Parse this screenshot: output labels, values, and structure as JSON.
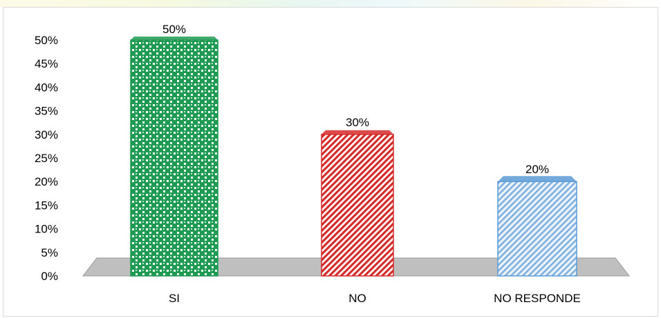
{
  "chart_data": {
    "type": "bar",
    "categories": [
      "SI",
      "NO",
      "NO RESPONDE"
    ],
    "values": [
      50,
      30,
      20
    ],
    "data_labels": [
      "50%",
      "30%",
      "20%"
    ],
    "ytick_labels": [
      "0%",
      "5%",
      "10%",
      "15%",
      "20%",
      "25%",
      "30%",
      "35%",
      "40%",
      "45%",
      "50%"
    ],
    "ylim": [
      0,
      50
    ],
    "ytick_step": 5,
    "title": "",
    "xlabel": "",
    "ylabel": "",
    "grid": false,
    "legend": "none",
    "colors": [
      "#1e9a52",
      "#d62b2b",
      "#5b9bd5"
    ]
  }
}
